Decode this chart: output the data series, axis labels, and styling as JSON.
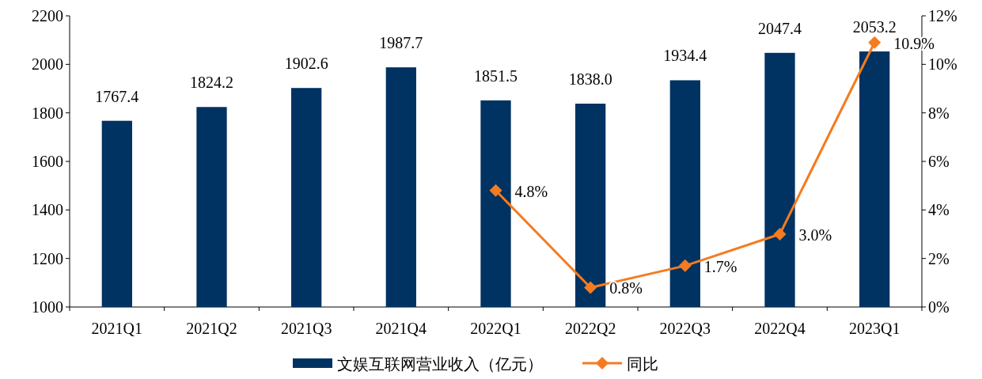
{
  "chart_data": {
    "type": "bar",
    "categories": [
      "2021Q1",
      "2021Q2",
      "2021Q3",
      "2021Q4",
      "2022Q1",
      "2022Q2",
      "2022Q3",
      "2022Q4",
      "2023Q1"
    ],
    "series": [
      {
        "name": "文娱互联网营业收入（亿元）",
        "color": "#003262",
        "values": [
          1767.4,
          1824.2,
          1902.6,
          1987.7,
          1851.5,
          1838.0,
          1934.4,
          2047.4,
          2053.2
        ],
        "value_labels": [
          "1767.4",
          "1824.2",
          "1902.6",
          "1987.7",
          "1851.5",
          "1838.0",
          "1934.4",
          "2047.4",
          "2053.2"
        ]
      },
      {
        "name": "同比",
        "type": "line",
        "axis": "y2",
        "color": "#f57b20",
        "marker": "diamond",
        "values": [
          null,
          null,
          null,
          null,
          4.8,
          0.8,
          1.7,
          3.0,
          10.9
        ],
        "value_labels": [
          null,
          null,
          null,
          null,
          "4.8%",
          "0.8%",
          "1.7%",
          "3.0%",
          "10.9%"
        ]
      }
    ],
    "ylim": [
      1000,
      2200
    ],
    "yticks": [
      1000,
      1200,
      1400,
      1600,
      1800,
      2000,
      2200
    ],
    "y2lim": [
      0,
      12
    ],
    "y2ticks": [
      {
        "value": 0,
        "label": "0%"
      },
      {
        "value": 2,
        "label": "2%"
      },
      {
        "value": 4,
        "label": "4%"
      },
      {
        "value": 6,
        "label": "6%"
      },
      {
        "value": 8,
        "label": "8%"
      },
      {
        "value": 10,
        "label": "10%"
      },
      {
        "value": 12,
        "label": "12%"
      }
    ],
    "legend": "bottom"
  }
}
